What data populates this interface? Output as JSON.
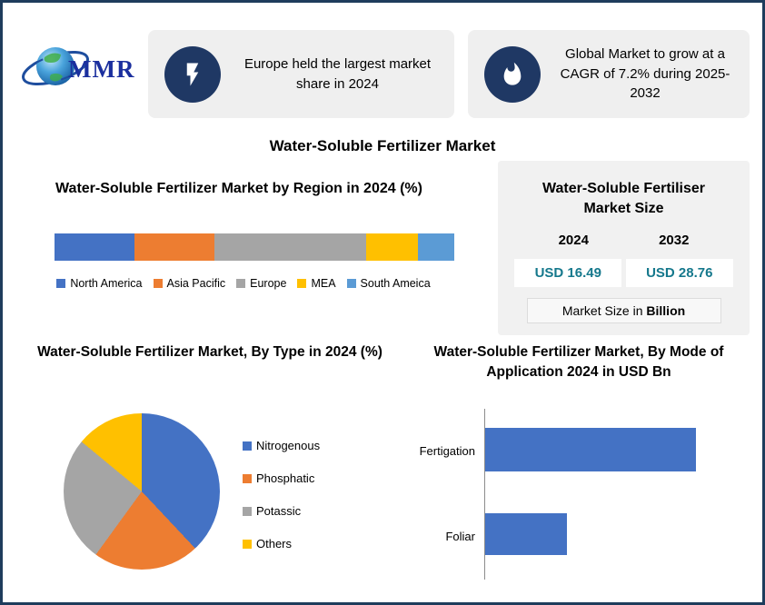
{
  "logo": {
    "text": "MMR"
  },
  "header_cards": [
    {
      "icon": "lightning-icon",
      "text": "Europe held the largest market share in 2024"
    },
    {
      "icon": "flame-icon",
      "text": "Global Market to grow at a CAGR of 7.2% during 2025-2032"
    }
  ],
  "main_title": "Water-Soluble Fertilizer Market",
  "market_size_card": {
    "title": "Water-Soluble Fertiliser Market Size",
    "years": [
      "2024",
      "2032"
    ],
    "values": [
      "USD 16.49",
      "USD 28.76"
    ],
    "footer_prefix": "Market Size in ",
    "footer_bold": "Billion",
    "value_color": "#15788c"
  },
  "chart_data": [
    {
      "type": "bar",
      "subtype": "stacked-horizontal-100pct",
      "title": "Water-Soluble Fertilizer Market by Region in 2024 (%)",
      "categories": [
        "North America",
        "Asia Pacific",
        "Europe",
        "MEA",
        "South Ameica"
      ],
      "values": [
        20,
        20,
        38,
        13,
        9
      ],
      "colors": [
        "#4472c4",
        "#ed7d31",
        "#a5a5a5",
        "#ffc000",
        "#5b9bd5"
      ],
      "unit": "%",
      "legend_position": "bottom"
    },
    {
      "type": "pie",
      "title": "Water-Soluble Fertilizer Market, By Type in 2024 (%)",
      "categories": [
        "Nitrogenous",
        "Phosphatic",
        "Potassic",
        "Others"
      ],
      "values": [
        38,
        22,
        26,
        14
      ],
      "colors": [
        "#4472c4",
        "#ed7d31",
        "#a5a5a5",
        "#ffc000"
      ],
      "unit": "% (estimated from slice angles, no data labels shown)",
      "legend_position": "right"
    },
    {
      "type": "bar",
      "subtype": "horizontal",
      "title": "Water-Soluble Fertilizer Market, By Mode of Application 2024 in USD Bn",
      "categories": [
        "Fertigation",
        "Foliar"
      ],
      "values_relative": [
        100,
        39
      ],
      "value_note": "axis unlabeled; bar lengths relative to longest bar",
      "bar_color": "#4472c4",
      "grid": false
    }
  ],
  "colors": {
    "border": "#1e3c5c",
    "card_bg": "#efefef",
    "icon_circle": "#1f3864",
    "size_card_bg": "#f1f1f1"
  }
}
